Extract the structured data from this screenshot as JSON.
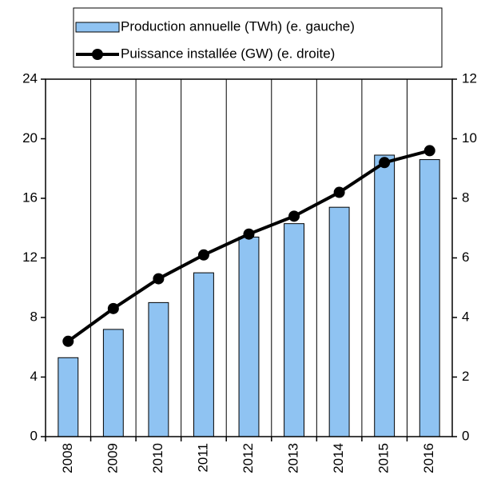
{
  "chart_data": {
    "type": "bar-line",
    "categories": [
      "2008",
      "2009",
      "2010",
      "2011",
      "2012",
      "2013",
      "2014",
      "2015",
      "2016"
    ],
    "series": [
      {
        "name": "Production annuelle (TWh) (e. gauche)",
        "type": "bar",
        "color": "#8fc3f2",
        "values": [
          5.3,
          7.2,
          9.0,
          11.0,
          13.4,
          14.3,
          15.4,
          18.9,
          18.6
        ]
      },
      {
        "name": "Puissance installée (GW) (e. droite)",
        "type": "line",
        "axis": "y2",
        "color": "#000000",
        "values": [
          3.2,
          4.3,
          5.3,
          6.1,
          6.8,
          7.4,
          8.2,
          9.2,
          9.6
        ]
      }
    ],
    "ylim": [
      0,
      24
    ],
    "yticks": [
      0,
      4,
      8,
      12,
      16,
      20,
      24
    ],
    "y2lim": [
      0,
      12
    ],
    "y2ticks": [
      0,
      2,
      4,
      6,
      8,
      10,
      12
    ],
    "grid": "x",
    "legend": "top"
  }
}
